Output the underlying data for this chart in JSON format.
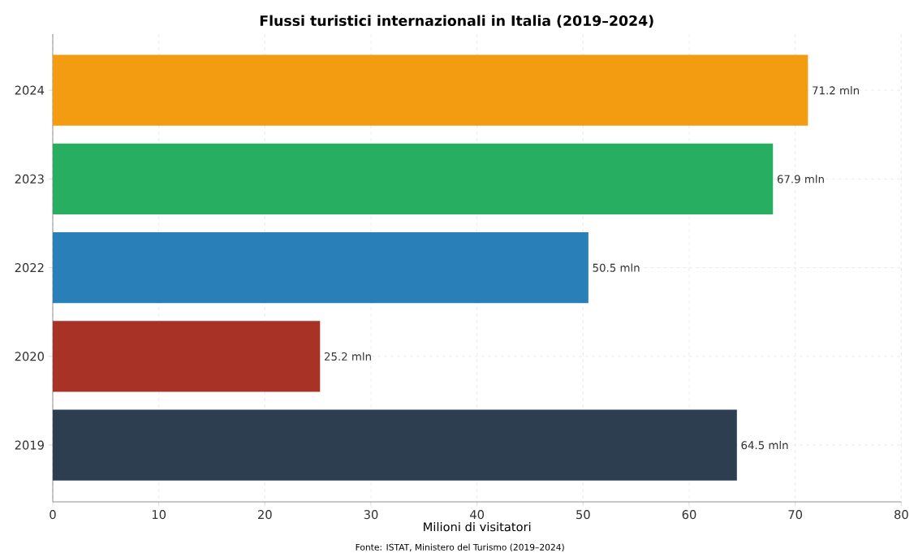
{
  "chart_data": {
    "type": "bar",
    "orientation": "horizontal",
    "title": "Flussi turistici internazionali in Italia (2019–2024)",
    "xlabel": "Milioni di visitatori",
    "annotations": [
      "Fonte: ISTAT, Ministero del Turismo (2019–2024)"
    ],
    "categories": [
      "2024",
      "2023",
      "2022",
      "2020",
      "2019"
    ],
    "values": [
      71.2,
      67.9,
      50.5,
      25.2,
      64.5
    ],
    "colors": [
      "#f39c12",
      "#27ae60",
      "#2980b9",
      "#a93226",
      "#2c3e50"
    ],
    "value_labels": [
      "71.2 mln",
      "67.9 mln",
      "50.5 mln",
      "25.2 mln",
      "64.5 mln"
    ],
    "xlim": [
      0,
      80
    ],
    "xticks": [
      0,
      10,
      20,
      30,
      40,
      50,
      60,
      70,
      80
    ],
    "grid": true
  }
}
